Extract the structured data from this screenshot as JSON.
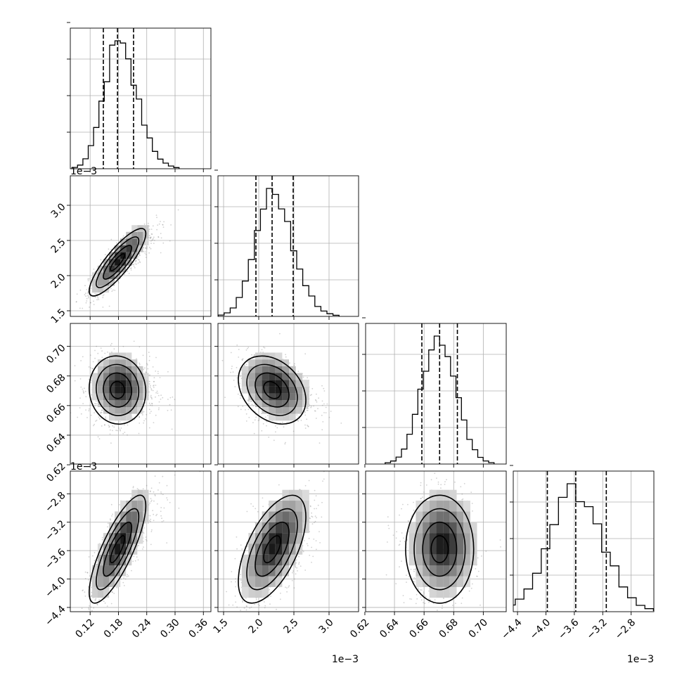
{
  "chart_data": {
    "type": "corner",
    "grid": true,
    "parameters": [
      {
        "ticks": [
          0.12,
          0.18,
          0.24,
          0.3,
          0.36
        ],
        "tick_labels": [
          "0.12",
          "0.18",
          "0.24",
          "0.30",
          "0.36"
        ],
        "range": [
          0.078,
          0.376
        ],
        "offset_label": "",
        "quantiles": [
          0.148,
          0.178,
          0.212
        ],
        "center": 0.178,
        "sigma": 0.03,
        "skew": 0.6
      },
      {
        "ticks": [
          1.5,
          2.0,
          2.5,
          3.0
        ],
        "tick_labels": [
          "1.5",
          "2.0",
          "2.5",
          "3.0"
        ],
        "range": [
          1.42,
          3.42
        ],
        "offset_label": "1e−3",
        "quantiles": [
          1.96,
          2.19,
          2.49
        ],
        "center": 2.19,
        "sigma": 0.24,
        "skew": 0.4
      },
      {
        "ticks": [
          0.62,
          0.64,
          0.66,
          0.68,
          0.7
        ],
        "tick_labels": [
          "0.62",
          "0.64",
          "0.66",
          "0.68",
          "0.70"
        ],
        "range": [
          0.6205,
          0.7155
        ],
        "offset_label": "",
        "quantiles": [
          0.6585,
          0.6705,
          0.6825
        ],
        "center": 0.6705,
        "sigma": 0.0115,
        "skew": 0.0
      },
      {
        "ticks": [
          -4.4,
          -4.0,
          -3.6,
          -3.2,
          -2.8
        ],
        "tick_labels": [
          "−4.4",
          "−4.0",
          "−3.6",
          "−3.2",
          "−2.8"
        ],
        "range": [
          -4.46,
          -2.48
        ],
        "offset_label": "1e−3",
        "quantiles": [
          -3.98,
          -3.58,
          -3.15
        ],
        "center": -3.58,
        "sigma": 0.38,
        "skew": 0.0
      }
    ],
    "correlations": [
      [
        1.0,
        0.85,
        -0.05,
        0.8
      ],
      [
        0.85,
        1.0,
        -0.3,
        0.6
      ],
      [
        -0.05,
        -0.3,
        1.0,
        0.0
      ],
      [
        0.8,
        0.6,
        0.0,
        1.0
      ]
    ],
    "y_offset_labels": [
      "",
      "1e−3",
      "",
      "1e−3"
    ],
    "x_offset_labels": [
      "",
      "1e−3",
      "",
      "1e−3"
    ]
  }
}
